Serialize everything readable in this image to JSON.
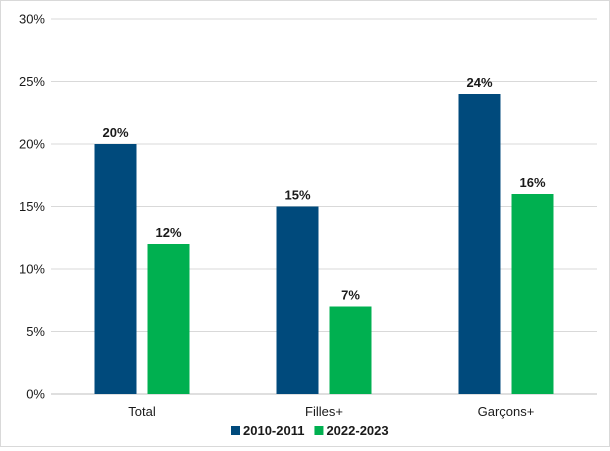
{
  "chart_data": {
    "type": "bar",
    "categories": [
      "Total",
      "Filles+",
      "Garçons+"
    ],
    "series": [
      {
        "name": "2010-2011",
        "values": [
          20,
          15,
          24
        ],
        "color": "#004a7c"
      },
      {
        "name": "2022-2023",
        "values": [
          12,
          7,
          16
        ],
        "color": "#00b050"
      }
    ],
    "ylim": [
      0,
      30
    ],
    "y_ticks": [
      0,
      5,
      10,
      15,
      20,
      25,
      30
    ],
    "value_suffix": "%",
    "grid": true,
    "legend_position": "bottom",
    "title": "",
    "xlabel": "",
    "ylabel": ""
  }
}
